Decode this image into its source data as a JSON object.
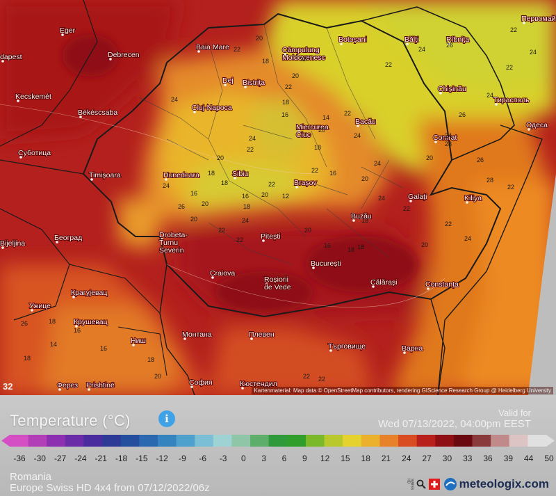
{
  "map": {
    "corner_value": "32",
    "credit": "Kartenmaterial: Map data © OpenStreetMap contributors, rendering GIScience Research Group @ Heidelberg University",
    "cities": [
      {
        "name": "Eger"
      },
      {
        "name": "dapest"
      },
      {
        "name": "Debrecen"
      },
      {
        "name": "Kecskemét"
      },
      {
        "name": "Békéscsaba"
      },
      {
        "name": "Суботица"
      },
      {
        "name": "Timișoara"
      },
      {
        "name": "Hunedoara"
      },
      {
        "name": "Bijeljina"
      },
      {
        "name": "Београд"
      },
      {
        "name": "Drobeta-\nTurnu\nSeverin"
      },
      {
        "name": "Крагујевац"
      },
      {
        "name": "Ужице"
      },
      {
        "name": "Крушевац"
      },
      {
        "name": "Ниш"
      },
      {
        "name": "Prishtinë"
      },
      {
        "name": "Ферез"
      },
      {
        "name": "Монтана"
      },
      {
        "name": "София"
      },
      {
        "name": "Кюстендил"
      },
      {
        "name": "Плевен"
      },
      {
        "name": "Търговище"
      },
      {
        "name": "Варна"
      },
      {
        "name": "Craiova"
      },
      {
        "name": "Roșiorii\nde Vede"
      },
      {
        "name": "Pitești"
      },
      {
        "name": "București"
      },
      {
        "name": "Călărași"
      },
      {
        "name": "Constanța"
      },
      {
        "name": "Buzău"
      },
      {
        "name": "Galați"
      },
      {
        "name": "Kiliya"
      },
      {
        "name": "Brașov"
      },
      {
        "name": "Sibiu"
      },
      {
        "name": "Cluj-Napoca"
      },
      {
        "name": "Dej"
      },
      {
        "name": "Bistrița"
      },
      {
        "name": "Baia Mare"
      },
      {
        "name": "Câmpulung\nMoldovenesc"
      },
      {
        "name": "Botoșani"
      },
      {
        "name": "Bălți"
      },
      {
        "name": "Rîbnița"
      },
      {
        "name": "Chișinău"
      },
      {
        "name": "Тирасполь"
      },
      {
        "name": "Одеса"
      },
      {
        "name": "Comrat"
      },
      {
        "name": "Bacău"
      },
      {
        "name": "Miercurea\nCiuc"
      },
      {
        "name": "Первомай"
      }
    ],
    "temps": [
      "20",
      "22",
      "18",
      "16",
      "20",
      "22",
      "24",
      "18",
      "16",
      "14",
      "22",
      "20",
      "24",
      "24",
      "22",
      "16",
      "18",
      "20",
      "24",
      "22",
      "18",
      "20",
      "16",
      "12",
      "18",
      "22",
      "20",
      "24",
      "26",
      "24",
      "22",
      "20",
      "18",
      "16",
      "18",
      "20",
      "22",
      "24",
      "22",
      "20",
      "18",
      "16",
      "18",
      "20",
      "22",
      "24",
      "26",
      "28",
      "22",
      "24",
      "20",
      "22",
      "24",
      "26",
      "22",
      "24",
      "26",
      "28",
      "22",
      "24",
      "26",
      "18",
      "16",
      "14",
      "18",
      "16",
      "18",
      "20",
      "22",
      "22"
    ]
  },
  "legend": {
    "title": "Temperature (°C)",
    "info_glyph": "i",
    "valid_for_label": "Valid for",
    "valid_date": "Wed 07/13/2022, 04:00pm EEST",
    "ticks": [
      "-36",
      "-30",
      "-27",
      "-24",
      "-21",
      "-18",
      "-15",
      "-12",
      "-9",
      "-6",
      "-3",
      "0",
      "3",
      "6",
      "9",
      "12",
      "15",
      "18",
      "21",
      "24",
      "27",
      "30",
      "33",
      "36",
      "39",
      "44",
      "50"
    ],
    "scale_colors": [
      "#d44fc4",
      "#b23fb8",
      "#8c2fb0",
      "#6b2ca8",
      "#4b2c9e",
      "#2e3b96",
      "#234f9e",
      "#2a68b0",
      "#3584c0",
      "#4ea1cd",
      "#7bbfd6",
      "#9fd2d2",
      "#8fc6a8",
      "#5cae6a",
      "#2f9a3a",
      "#2f9e2a",
      "#7bb92a",
      "#b9c82c",
      "#e6d22e",
      "#ebb12c",
      "#e8822a",
      "#d94c22",
      "#b8201c",
      "#8e0f14",
      "#6a0a10",
      "#8a3a3a",
      "#c08a8a",
      "#dcc4c4",
      "#e0e0e0"
    ],
    "region": "Romania",
    "model": "Europe Swiss HD 4x4 from 07/12/2022/06z",
    "swiss_badge": "SWISS HD",
    "brand": "meteologix.com",
    "brand_color": "#1d2c52"
  }
}
